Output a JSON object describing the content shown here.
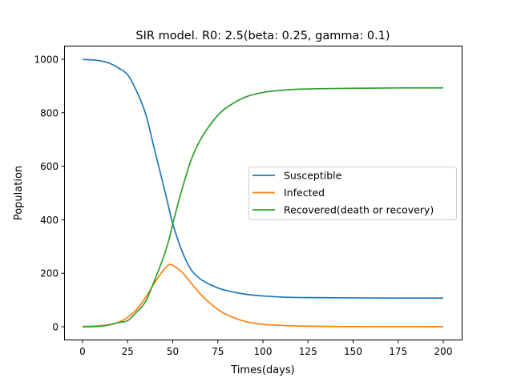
{
  "chart_data": {
    "type": "line",
    "title": "SIR model. R0: 2.5(beta: 0.25, gamma: 0.1)",
    "xlabel": "Times(days)",
    "ylabel": "Population",
    "xlim": [
      -9,
      209
    ],
    "ylim": [
      -50,
      1050
    ],
    "xticks": [
      0,
      25,
      50,
      75,
      100,
      125,
      150,
      175,
      200
    ],
    "yticks": [
      0,
      200,
      400,
      600,
      800,
      1000
    ],
    "grid": false,
    "legend": "center-right",
    "x": [
      0,
      5,
      10,
      15,
      20,
      25,
      30,
      35,
      40,
      45,
      48,
      50,
      55,
      60,
      65,
      70,
      75,
      80,
      90,
      100,
      110,
      125,
      150,
      175,
      200
    ],
    "series": [
      {
        "name": "Susceptible",
        "color": "#1f77b4",
        "values": [
          999,
          998,
          994,
          985,
          967,
          942,
          880,
          795,
          660,
          525,
          440,
          385,
          285,
          215,
          180,
          160,
          145,
          135,
          122,
          115,
          111,
          109,
          108,
          107,
          107
        ]
      },
      {
        "name": "Infected",
        "color": "#ff7f0e",
        "values": [
          1,
          2,
          4,
          8,
          17,
          35,
          65,
          110,
          165,
          213,
          232,
          230,
          205,
          165,
          125,
          92,
          65,
          45,
          20,
          9,
          5,
          2,
          0.5,
          0.2,
          0.1
        ]
      },
      {
        "name": "Recovered(death or recovery)",
        "color": "#2ca02c",
        "values": [
          0,
          0,
          2,
          7,
          16,
          23,
          55,
          95,
          175,
          262,
          328,
          385,
          510,
          620,
          695,
          748,
          790,
          820,
          858,
          876,
          884,
          889,
          891.5,
          892.8,
          892.9
        ]
      }
    ]
  }
}
